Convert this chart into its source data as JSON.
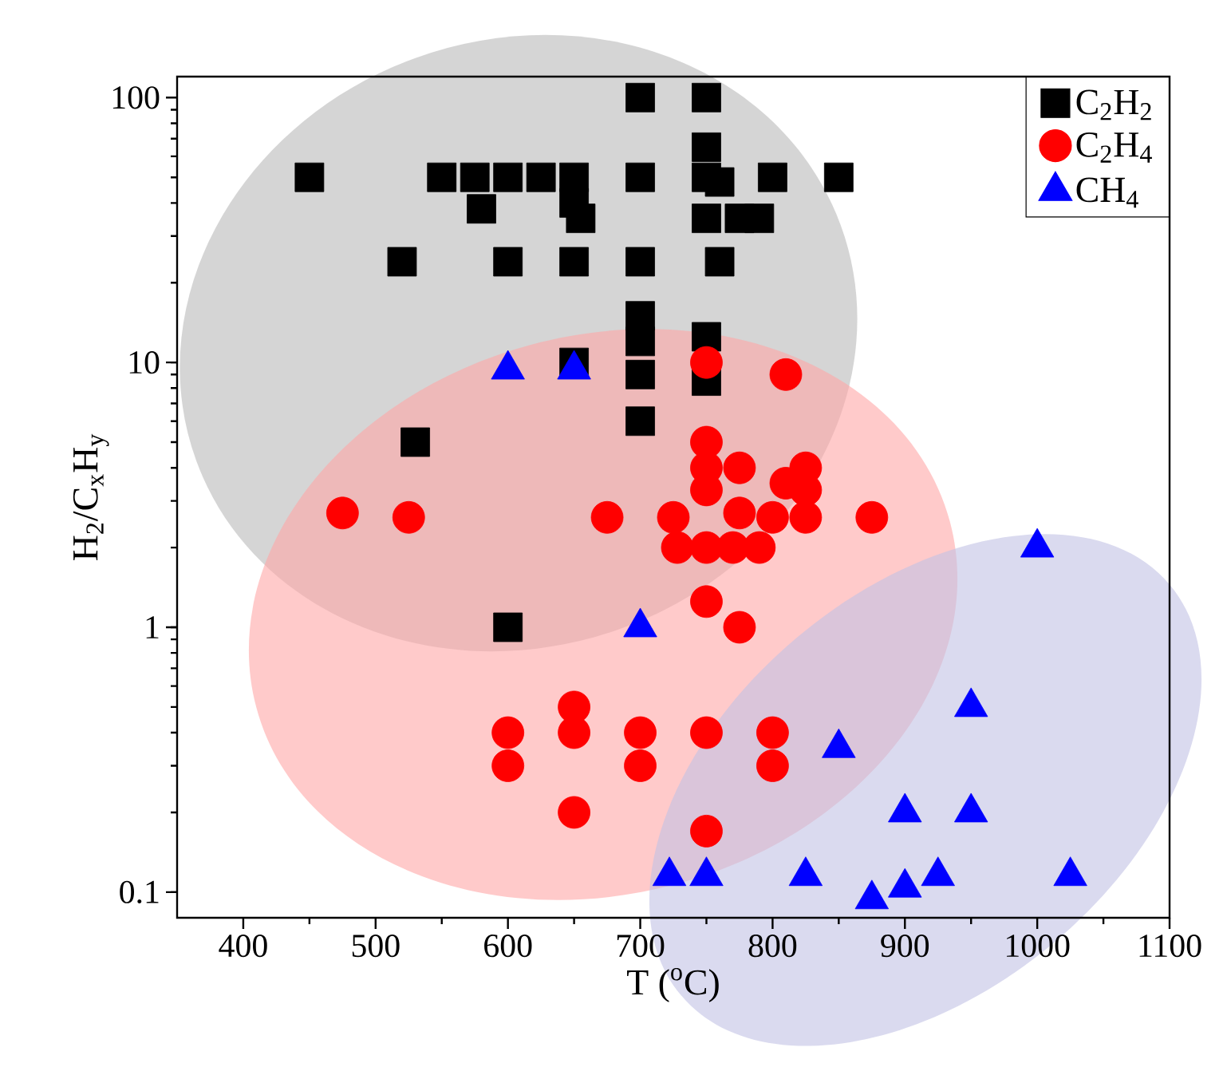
{
  "chart_data": {
    "type": "scatter",
    "xlabel": "T ($^{o}$C)",
    "ylabel": "H$_{2}$/C$_{x}$H$_{y}$",
    "log": "y",
    "xlim": [
      350,
      1100
    ],
    "ylim": [
      0.08,
      120
    ],
    "xticks": [
      400,
      500,
      600,
      700,
      800,
      900,
      1000,
      1100
    ],
    "yticks": [
      0.1,
      1,
      10,
      100
    ],
    "grid": false,
    "legend": "top right",
    "series": [
      {
        "name": "C$_{2}$H$_{2}$",
        "color": "#000000",
        "marker": "square",
        "x": [
          450,
          530,
          520,
          550,
          575,
          580,
          600,
          600,
          600,
          625,
          650,
          650,
          655,
          650,
          650,
          700,
          700,
          700,
          700,
          700,
          700,
          700,
          750,
          750,
          750,
          760,
          750,
          775,
          790,
          760,
          750,
          750,
          800,
          850
        ],
        "values": [
          50,
          5,
          24,
          50,
          50,
          38,
          50,
          24,
          1,
          50,
          50,
          40,
          35,
          24,
          10,
          100,
          50,
          24,
          15,
          12,
          9,
          6,
          100,
          65,
          50,
          48,
          35,
          35,
          35,
          24,
          12.5,
          8.5,
          50,
          50
        ]
      },
      {
        "name": "C$_{2}$H$_{4}$",
        "color": "#ff0000",
        "marker": "circle",
        "x": [
          475,
          525,
          675,
          725,
          728,
          600,
          600,
          650,
          650,
          650,
          700,
          700,
          750,
          810,
          750,
          750,
          750,
          775,
          810,
          825,
          825,
          775,
          800,
          825,
          875,
          750,
          770,
          790,
          750,
          775,
          750,
          800,
          800,
          750
        ],
        "values": [
          2.7,
          2.6,
          2.6,
          2.6,
          2.0,
          0.4,
          0.3,
          0.5,
          0.4,
          0.2,
          0.4,
          0.3,
          10,
          9,
          5,
          4,
          3.3,
          4,
          3.5,
          4,
          3.3,
          2.7,
          2.6,
          2.6,
          2.6,
          2,
          2,
          2,
          1.25,
          1,
          0.4,
          0.4,
          0.3,
          0.17
        ]
      },
      {
        "name": "CH$_{4}$",
        "color": "#0000ff",
        "marker": "triangle",
        "x": [
          600,
          650,
          700,
          1000,
          950,
          850,
          900,
          950,
          722,
          750,
          825,
          875,
          900,
          925,
          1025
        ],
        "values": [
          9.4,
          9.4,
          1.0,
          2.0,
          0.5,
          0.35,
          0.2,
          0.2,
          0.115,
          0.115,
          0.115,
          0.094,
          0.104,
          0.115,
          0.115
        ]
      }
    ]
  }
}
